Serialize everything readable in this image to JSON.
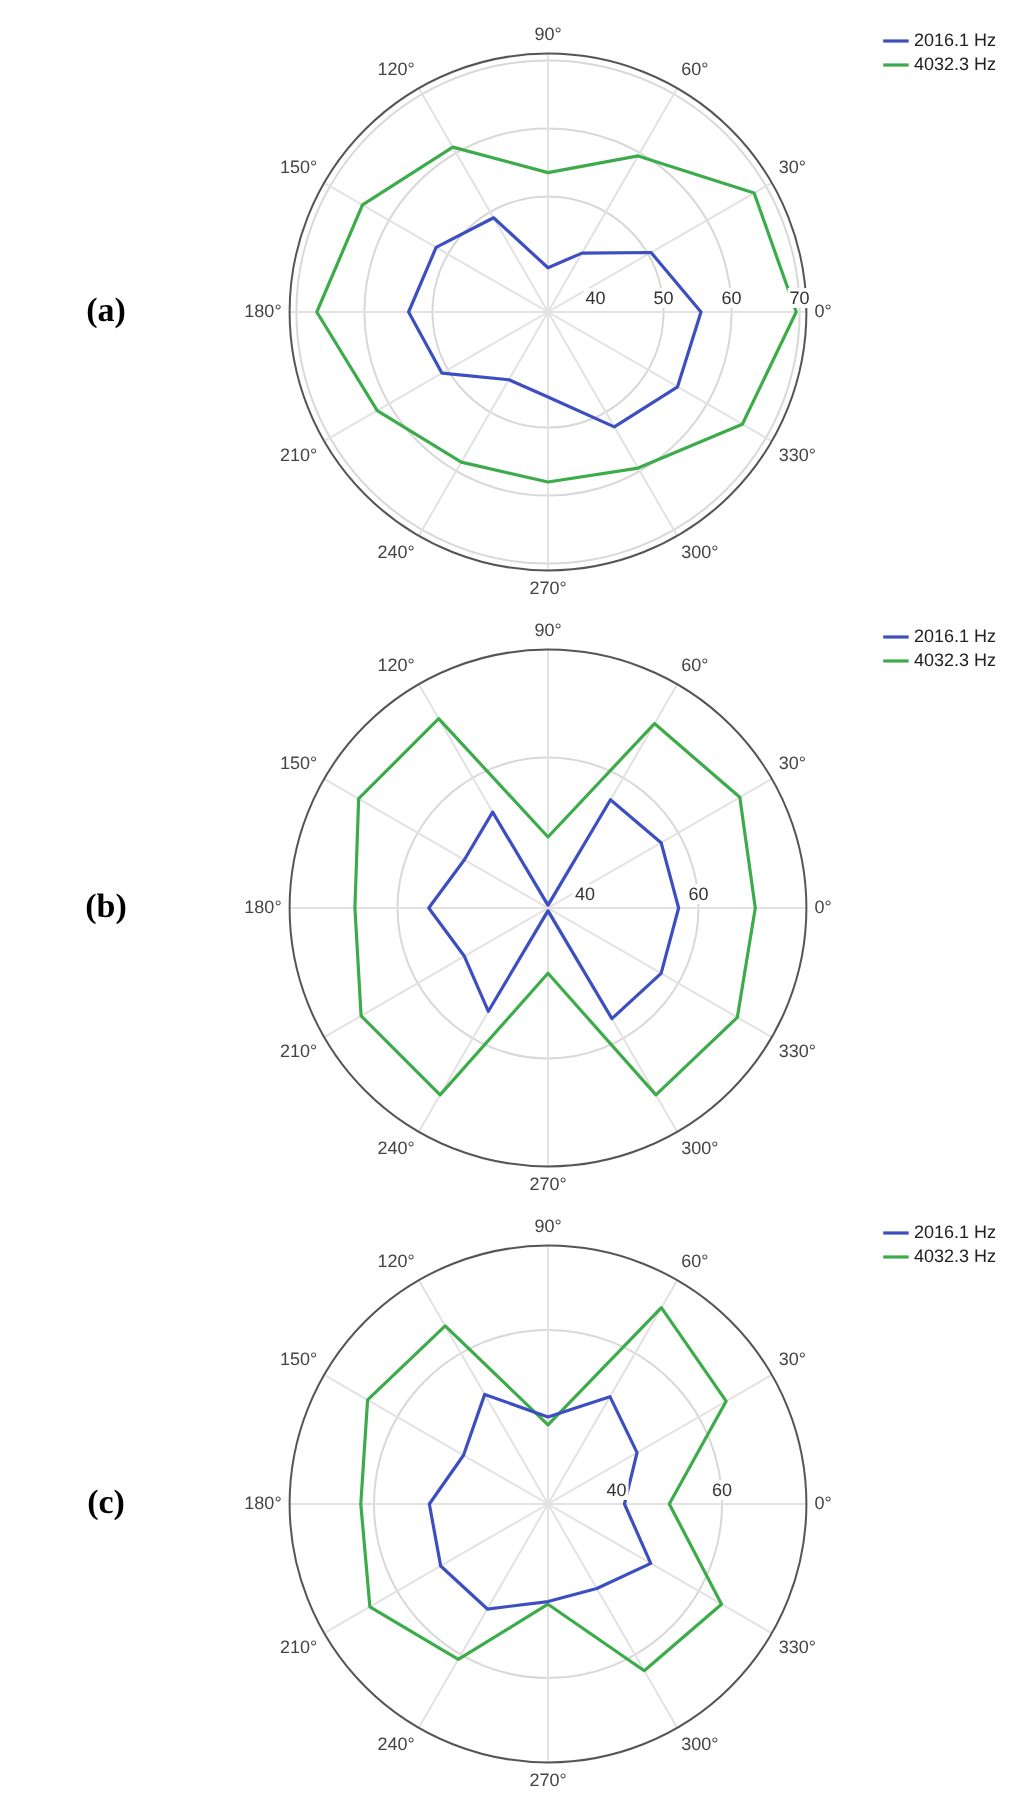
{
  "chart_data": [
    {
      "type": "radar",
      "title": "(a)",
      "categories": [
        "90°",
        "60°",
        "30°",
        "0°",
        "330°",
        "300°",
        "270°",
        "240°",
        "210°",
        "180°",
        "150°",
        "120°"
      ],
      "series": [
        {
          "name": "2016.1 Hz",
          "color": "#3d4fc0",
          "values": [
            39.5,
            43,
            50.5,
            55.5,
            55,
            52.5,
            45.5,
            44.5,
            51,
            53.5,
            52,
            49
          ]
        },
        {
          "name": "4032.3 Hz",
          "color": "#3cac4a",
          "values": [
            53.5,
            59.5,
            68,
            69.5,
            66,
            59.5,
            58,
            58.5,
            62,
            67,
            64.5,
            61
          ]
        }
      ],
      "ylim": [
        33,
        71
      ],
      "yticks": [
        40,
        50,
        60,
        70
      ],
      "grid": true,
      "legend": "top right"
    },
    {
      "type": "radar",
      "title": "(b)",
      "categories": [
        "90°",
        "60°",
        "30°",
        "0°",
        "330°",
        "300°",
        "270°",
        "240°",
        "210°",
        "180°",
        "150°",
        "120°"
      ],
      "series": [
        {
          "name": "2016.1 Hz",
          "color": "#3d4fc0",
          "values": [
            34,
            55.5,
            56.5,
            56.5,
            56.5,
            56,
            34,
            54.5,
            50.5,
            54.5,
            50.5,
            53
          ]
        },
        {
          "name": "4032.3 Hz",
          "color": "#3cac4a",
          "values": [
            46,
            71,
            72.5,
            70,
            72,
            71.5,
            45,
            71.5,
            71.5,
            67.5,
            72,
            72
          ]
        }
      ],
      "ylim": [
        33.5,
        79
      ],
      "yticks": [
        40,
        60
      ],
      "grid": true,
      "legend": "top right"
    },
    {
      "type": "radar",
      "title": "(c)",
      "categories": [
        "90°",
        "60°",
        "30°",
        "0°",
        "330°",
        "300°",
        "270°",
        "240°",
        "210°",
        "180°",
        "150°",
        "120°"
      ],
      "series": [
        {
          "name": "2016.1 Hz",
          "color": "#3d4fc0",
          "values": [
            43.5,
            50.5,
            46.5,
            41.5,
            49.5,
            45.5,
            45.5,
            50,
            50.5,
            49.5,
            45.5,
            51
          ]
        },
        {
          "name": "4032.3 Hz",
          "color": "#3cac4a",
          "values": [
            42,
            70,
            66,
            50,
            65,
            63.5,
            46,
            61,
            66,
            62.5,
            66.5,
            66
          ]
        }
      ],
      "ylim": [
        27,
        76
      ],
      "yticks": [
        40,
        60
      ],
      "grid": true,
      "legend": "top right"
    }
  ]
}
